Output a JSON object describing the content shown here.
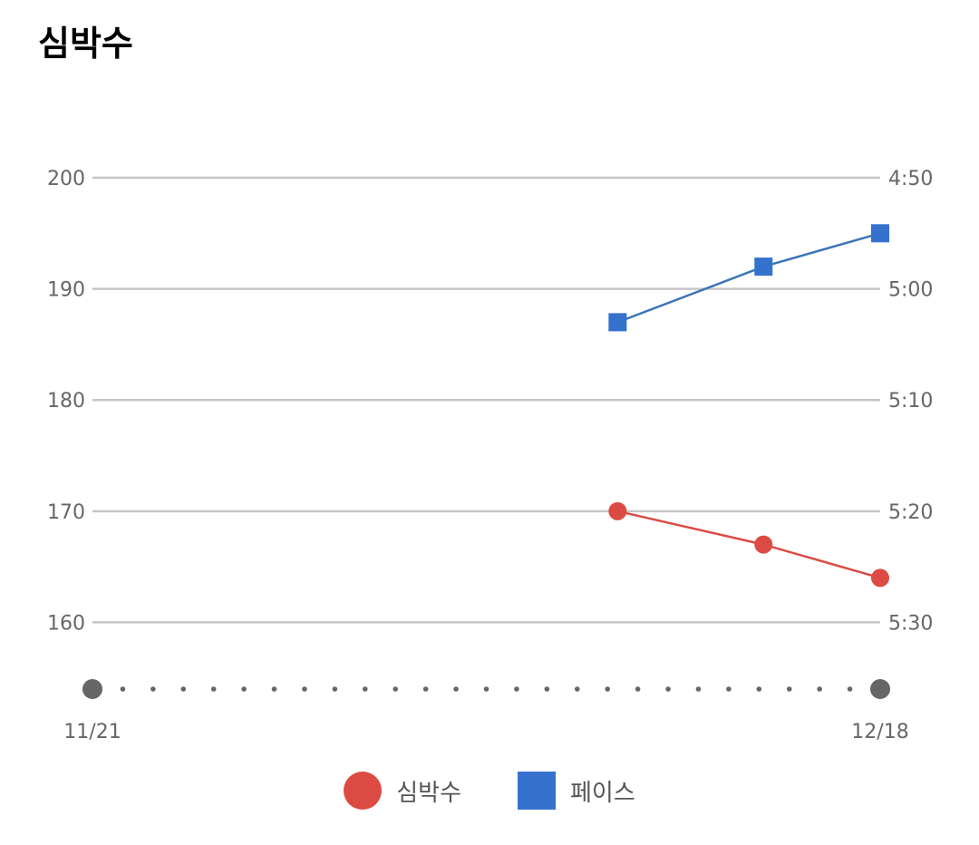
{
  "header": {
    "title": "심박수"
  },
  "colors": {
    "heart_rate": "#db4b43",
    "pace": "#3572cd",
    "pace_line": "#3a74b8",
    "grid": "#c6c6c6",
    "axis_dots": "#666666",
    "tick_text": "#666666"
  },
  "chart_data": {
    "type": "line",
    "title": "심박수",
    "x_ticks": [
      "11/21",
      "12/18"
    ],
    "x_range": [
      "11/21",
      "12/18"
    ],
    "left_axis": {
      "ticks": [
        "200",
        "190",
        "180",
        "170",
        "160"
      ],
      "range": [
        154,
        200
      ]
    },
    "right_axis": {
      "ticks": [
        "4:50",
        "5:00",
        "5:10",
        "5:20",
        "5:30"
      ],
      "range": [
        "4:50",
        "5:36"
      ]
    },
    "grid": true,
    "legend_position": "bottom",
    "series": [
      {
        "name": "심박수",
        "axis": "left",
        "marker": "circle",
        "color": "#db4b43",
        "points": [
          {
            "date": "12/09",
            "value": 170
          },
          {
            "date": "12/14",
            "value": 167
          },
          {
            "date": "12/18",
            "value": 164
          }
        ]
      },
      {
        "name": "페이스",
        "axis": "right",
        "marker": "square",
        "color": "#3572cd",
        "points": [
          {
            "date": "12/09",
            "value": "5:03"
          },
          {
            "date": "12/14",
            "value": "4:58"
          },
          {
            "date": "12/18",
            "value": "4:55"
          }
        ]
      }
    ]
  },
  "legend": {
    "items": [
      {
        "label": "심박수"
      },
      {
        "label": "페이스"
      }
    ]
  }
}
